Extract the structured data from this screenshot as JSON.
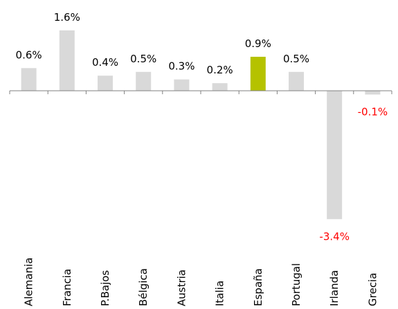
{
  "chart_data": {
    "type": "bar",
    "categories": [
      "Alemania",
      "Francia",
      "P.Bajos",
      "Bélgica",
      "Austria",
      "Italia",
      "España",
      "Portugal",
      "Irlanda",
      "Grecia"
    ],
    "values": [
      0.6,
      1.6,
      0.4,
      0.5,
      0.3,
      0.2,
      0.9,
      0.5,
      -3.4,
      -0.1
    ],
    "value_labels": [
      "0.6%",
      "1.6%",
      "0.4%",
      "0.5%",
      "0.3%",
      "0.2%",
      "0.9%",
      "0.5%",
      "-3.4%",
      "-0.1%"
    ],
    "colors": [
      "#d9d9d9",
      "#d9d9d9",
      "#d9d9d9",
      "#d9d9d9",
      "#d9d9d9",
      "#d9d9d9",
      "#b5c200",
      "#d9d9d9",
      "#d9d9d9",
      "#d9d9d9"
    ],
    "negative_label_color": "#ff0000",
    "label_color": "#000000"
  }
}
